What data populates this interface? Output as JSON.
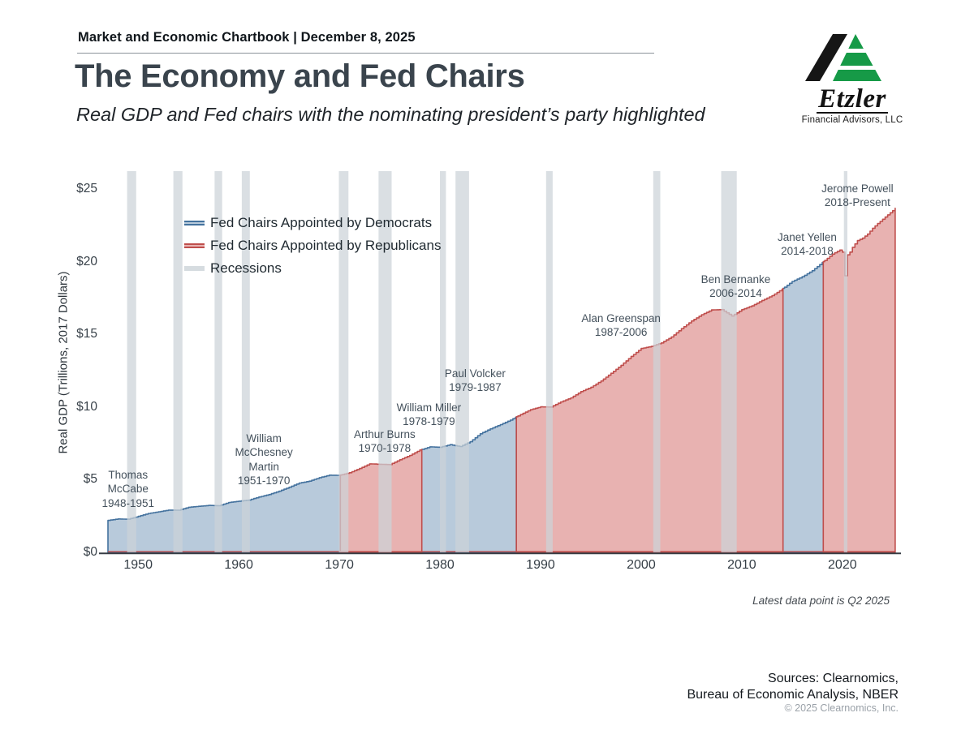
{
  "header": {
    "kicker": "Market and Economic Chartbook | December 8, 2025",
    "title": "The Economy and Fed Chairs",
    "subtitle": "Real GDP and Fed chairs with the nominating president’s party highlighted"
  },
  "logo": {
    "name": "Etzler",
    "subtitle": "Financial Advisors, LLC",
    "green": "#169a47",
    "black": "#161616"
  },
  "legend": [
    {
      "label": "Fed Chairs Appointed by Democrats",
      "fill": "#b8cadb",
      "stroke": "#44729e"
    },
    {
      "label": "Fed Chairs Appointed by Republicans",
      "fill": "#e8b2b1",
      "stroke": "#bf4e4c"
    },
    {
      "label": "Recessions",
      "fill": "#d6dce0",
      "stroke": "#d6dce0"
    }
  ],
  "chart_data": {
    "type": "area",
    "title": "The Economy and Fed Chairs",
    "xlabel": "",
    "ylabel": "Real GDP (Trillions, 2017 Dollars)",
    "ylim": [
      0,
      26.2
    ],
    "xlim": [
      1947,
      2025.5
    ],
    "grid": false,
    "legend_position": "top-left",
    "yticks": [
      {
        "value": 0,
        "label": "$0"
      },
      {
        "value": 5,
        "label": "$5"
      },
      {
        "value": 10,
        "label": "$10"
      },
      {
        "value": 15,
        "label": "$15"
      },
      {
        "value": 20,
        "label": "$20"
      },
      {
        "value": 25,
        "label": "$25"
      }
    ],
    "xticks": [
      1950,
      1960,
      1970,
      1980,
      1990,
      2000,
      2010,
      2020
    ],
    "colors": {
      "dem_fill": "#b8cadb",
      "dem_stroke": "#44729e",
      "rep_fill": "#e8b2b1",
      "rep_stroke": "#bf4e4c",
      "recession": "#ccd3d8",
      "axis": "#363d44"
    },
    "gdp_trillions_2017": [
      [
        1947,
        2.2
      ],
      [
        1948,
        2.3
      ],
      [
        1949,
        2.28
      ],
      [
        1950,
        2.48
      ],
      [
        1951,
        2.68
      ],
      [
        1952,
        2.79
      ],
      [
        1953,
        2.91
      ],
      [
        1954,
        2.9
      ],
      [
        1955,
        3.1
      ],
      [
        1956,
        3.17
      ],
      [
        1957,
        3.23
      ],
      [
        1958,
        3.21
      ],
      [
        1959,
        3.43
      ],
      [
        1960,
        3.52
      ],
      [
        1961,
        3.6
      ],
      [
        1962,
        3.81
      ],
      [
        1963,
        3.98
      ],
      [
        1964,
        4.21
      ],
      [
        1965,
        4.48
      ],
      [
        1966,
        4.77
      ],
      [
        1967,
        4.9
      ],
      [
        1968,
        5.14
      ],
      [
        1969,
        5.31
      ],
      [
        1970,
        5.3
      ],
      [
        1971,
        5.48
      ],
      [
        1972,
        5.77
      ],
      [
        1973,
        6.09
      ],
      [
        1974,
        6.06
      ],
      [
        1975,
        6.04
      ],
      [
        1976,
        6.37
      ],
      [
        1977,
        6.67
      ],
      [
        1978,
        7.04
      ],
      [
        1979,
        7.26
      ],
      [
        1980,
        7.23
      ],
      [
        1981,
        7.41
      ],
      [
        1982,
        7.28
      ],
      [
        1983,
        7.61
      ],
      [
        1984,
        8.16
      ],
      [
        1985,
        8.5
      ],
      [
        1986,
        8.79
      ],
      [
        1987,
        9.1
      ],
      [
        1988,
        9.48
      ],
      [
        1989,
        9.82
      ],
      [
        1990,
        10.01
      ],
      [
        1991,
        10.0
      ],
      [
        1992,
        10.35
      ],
      [
        1993,
        10.63
      ],
      [
        1994,
        11.06
      ],
      [
        1995,
        11.36
      ],
      [
        1996,
        11.79
      ],
      [
        1997,
        12.32
      ],
      [
        1998,
        12.87
      ],
      [
        1999,
        13.48
      ],
      [
        2000,
        14.03
      ],
      [
        2001,
        14.17
      ],
      [
        2002,
        14.41
      ],
      [
        2003,
        14.82
      ],
      [
        2004,
        15.39
      ],
      [
        2005,
        15.92
      ],
      [
        2006,
        16.35
      ],
      [
        2007,
        16.68
      ],
      [
        2008,
        16.7
      ],
      [
        2009,
        16.26
      ],
      [
        2010,
        16.7
      ],
      [
        2011,
        16.96
      ],
      [
        2012,
        17.33
      ],
      [
        2013,
        17.66
      ],
      [
        2014,
        18.11
      ],
      [
        2015,
        18.64
      ],
      [
        2016,
        18.96
      ],
      [
        2017,
        19.38
      ],
      [
        2018,
        19.94
      ],
      [
        2019,
        20.52
      ],
      [
        2019.75,
        20.8
      ],
      [
        2020,
        20.66
      ],
      [
        2020.25,
        19.03
      ],
      [
        2020.5,
        20.47
      ],
      [
        2020.75,
        20.66
      ],
      [
        2021,
        20.99
      ],
      [
        2021.5,
        21.45
      ],
      [
        2022,
        21.62
      ],
      [
        2022.5,
        21.9
      ],
      [
        2023,
        22.3
      ],
      [
        2023.5,
        22.62
      ],
      [
        2024,
        22.92
      ],
      [
        2024.5,
        23.22
      ],
      [
        2025,
        23.51
      ],
      [
        2025.25,
        23.68
      ]
    ],
    "fed_chair_regions": [
      {
        "party": "D",
        "chairs": [
          "Thomas McCabe",
          "William McChesney Martin"
        ],
        "start": 1947.0,
        "end": 1970.1
      },
      {
        "party": "R",
        "chairs": [
          "Arthur Burns"
        ],
        "start": 1970.1,
        "end": 1978.2
      },
      {
        "party": "D",
        "chairs": [
          "William Miller",
          "Paul Volcker"
        ],
        "start": 1978.2,
        "end": 1987.6
      },
      {
        "party": "R",
        "chairs": [
          "Alan Greenspan",
          "Ben Bernanke"
        ],
        "start": 1987.6,
        "end": 2014.1
      },
      {
        "party": "D",
        "chairs": [
          "Janet Yellen"
        ],
        "start": 2014.1,
        "end": 2018.1
      },
      {
        "party": "R",
        "chairs": [
          "Jerome Powell"
        ],
        "start": 2018.1,
        "end": 2025.25
      }
    ],
    "recessions": [
      [
        1948.9,
        1949.8
      ],
      [
        1953.5,
        1954.4
      ],
      [
        1957.6,
        1958.35
      ],
      [
        1960.3,
        1961.1
      ],
      [
        1969.95,
        1970.9
      ],
      [
        1973.9,
        1975.2
      ],
      [
        1980.0,
        1980.6
      ],
      [
        1981.55,
        1982.9
      ],
      [
        1990.55,
        1991.2
      ],
      [
        2001.2,
        2001.9
      ],
      [
        2007.95,
        2009.5
      ],
      [
        2020.15,
        2020.5
      ]
    ],
    "chair_labels": [
      {
        "lines": [
          "Thomas",
          "McCabe",
          "1948-1951"
        ],
        "x_year": 1949.0,
        "y_value": 5.8
      },
      {
        "lines": [
          "William",
          "McChesney",
          "Martin",
          "1951-1970"
        ],
        "x_year": 1962.5,
        "y_value": 8.31
      },
      {
        "lines": [
          "Arthur Burns",
          "1970-1978"
        ],
        "x_year": 1974.5,
        "y_value": 8.6
      },
      {
        "lines": [
          "William Miller",
          "1978-1979"
        ],
        "x_year": 1978.9,
        "y_value": 10.44
      },
      {
        "lines": [
          "Paul Volcker",
          "1979-1987"
        ],
        "x_year": 1983.5,
        "y_value": 12.78
      },
      {
        "lines": [
          "Alan Greenspan",
          "1987-2006"
        ],
        "x_year": 1998.0,
        "y_value": 16.57
      },
      {
        "lines": [
          "Ben Bernanke",
          "2006-2014"
        ],
        "x_year": 2009.4,
        "y_value": 19.25
      },
      {
        "lines": [
          "Janet Yellen",
          "2014-2018"
        ],
        "x_year": 2016.5,
        "y_value": 22.15
      },
      {
        "lines": [
          "Jerome Powell",
          "2018-Present"
        ],
        "x_year": 2021.5,
        "y_value": 25.5
      }
    ]
  },
  "footer": {
    "note": "Latest data point is Q2 2025",
    "sources_line1": "Sources: Clearnomics,",
    "sources_line2": "Bureau of Economic Analysis, NBER",
    "copyright": "© 2025 Clearnomics, Inc."
  }
}
